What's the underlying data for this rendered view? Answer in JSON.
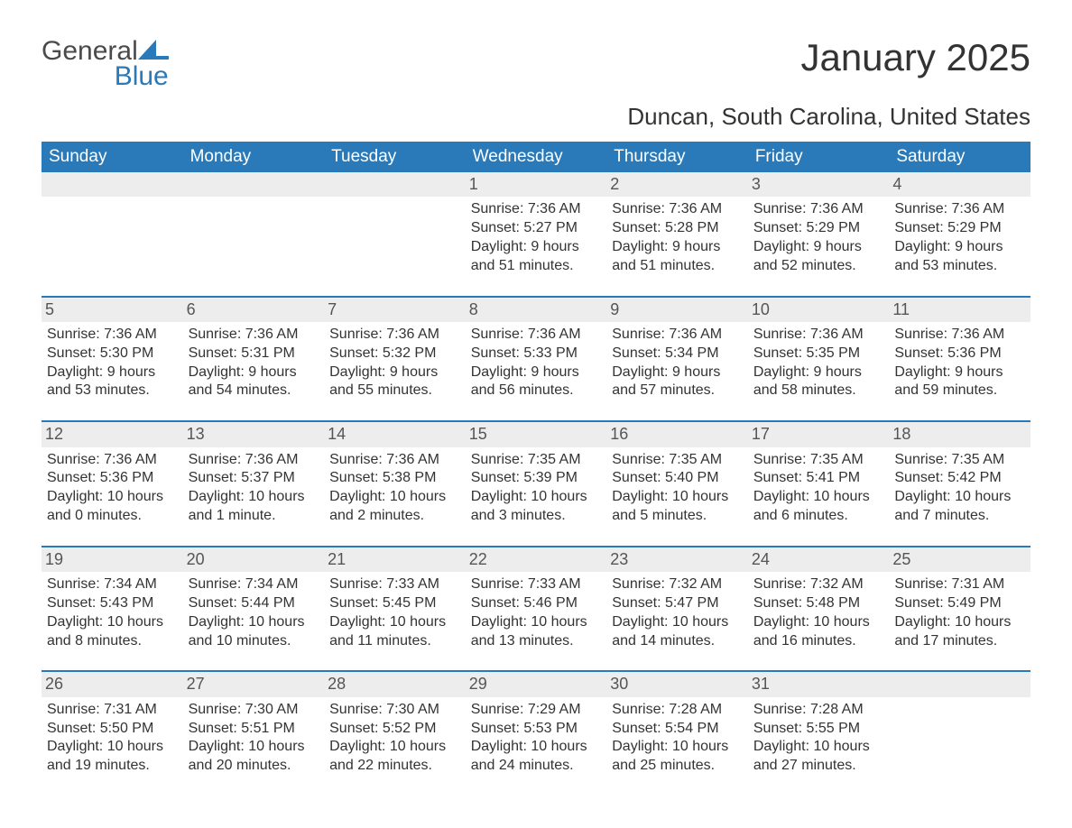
{
  "logo": {
    "word1": "General",
    "word2": "Blue",
    "word1_color": "#4a4a4a",
    "word2_color": "#2a7ab9",
    "sail_color": "#2a7ab9"
  },
  "title": "January 2025",
  "subtitle": "Duncan, South Carolina, United States",
  "colors": {
    "header_bg": "#2a7ab9",
    "header_text": "#ffffff",
    "daynum_bg": "#ededed",
    "daynum_text": "#555555",
    "body_text": "#333333",
    "row_separator": "#2a7ab9",
    "page_bg": "#ffffff"
  },
  "fonts": {
    "title_size": 42,
    "subtitle_size": 26,
    "header_size": 19,
    "daynum_size": 18,
    "body_size": 16
  },
  "weekdays": [
    "Sunday",
    "Monday",
    "Tuesday",
    "Wednesday",
    "Thursday",
    "Friday",
    "Saturday"
  ],
  "weeks": [
    [
      null,
      null,
      null,
      {
        "day": "1",
        "sunrise": "Sunrise: 7:36 AM",
        "sunset": "Sunset: 5:27 PM",
        "daylight": "Daylight: 9 hours and 51 minutes."
      },
      {
        "day": "2",
        "sunrise": "Sunrise: 7:36 AM",
        "sunset": "Sunset: 5:28 PM",
        "daylight": "Daylight: 9 hours and 51 minutes."
      },
      {
        "day": "3",
        "sunrise": "Sunrise: 7:36 AM",
        "sunset": "Sunset: 5:29 PM",
        "daylight": "Daylight: 9 hours and 52 minutes."
      },
      {
        "day": "4",
        "sunrise": "Sunrise: 7:36 AM",
        "sunset": "Sunset: 5:29 PM",
        "daylight": "Daylight: 9 hours and 53 minutes."
      }
    ],
    [
      {
        "day": "5",
        "sunrise": "Sunrise: 7:36 AM",
        "sunset": "Sunset: 5:30 PM",
        "daylight": "Daylight: 9 hours and 53 minutes."
      },
      {
        "day": "6",
        "sunrise": "Sunrise: 7:36 AM",
        "sunset": "Sunset: 5:31 PM",
        "daylight": "Daylight: 9 hours and 54 minutes."
      },
      {
        "day": "7",
        "sunrise": "Sunrise: 7:36 AM",
        "sunset": "Sunset: 5:32 PM",
        "daylight": "Daylight: 9 hours and 55 minutes."
      },
      {
        "day": "8",
        "sunrise": "Sunrise: 7:36 AM",
        "sunset": "Sunset: 5:33 PM",
        "daylight": "Daylight: 9 hours and 56 minutes."
      },
      {
        "day": "9",
        "sunrise": "Sunrise: 7:36 AM",
        "sunset": "Sunset: 5:34 PM",
        "daylight": "Daylight: 9 hours and 57 minutes."
      },
      {
        "day": "10",
        "sunrise": "Sunrise: 7:36 AM",
        "sunset": "Sunset: 5:35 PM",
        "daylight": "Daylight: 9 hours and 58 minutes."
      },
      {
        "day": "11",
        "sunrise": "Sunrise: 7:36 AM",
        "sunset": "Sunset: 5:36 PM",
        "daylight": "Daylight: 9 hours and 59 minutes."
      }
    ],
    [
      {
        "day": "12",
        "sunrise": "Sunrise: 7:36 AM",
        "sunset": "Sunset: 5:36 PM",
        "daylight": "Daylight: 10 hours and 0 minutes."
      },
      {
        "day": "13",
        "sunrise": "Sunrise: 7:36 AM",
        "sunset": "Sunset: 5:37 PM",
        "daylight": "Daylight: 10 hours and 1 minute."
      },
      {
        "day": "14",
        "sunrise": "Sunrise: 7:36 AM",
        "sunset": "Sunset: 5:38 PM",
        "daylight": "Daylight: 10 hours and 2 minutes."
      },
      {
        "day": "15",
        "sunrise": "Sunrise: 7:35 AM",
        "sunset": "Sunset: 5:39 PM",
        "daylight": "Daylight: 10 hours and 3 minutes."
      },
      {
        "day": "16",
        "sunrise": "Sunrise: 7:35 AM",
        "sunset": "Sunset: 5:40 PM",
        "daylight": "Daylight: 10 hours and 5 minutes."
      },
      {
        "day": "17",
        "sunrise": "Sunrise: 7:35 AM",
        "sunset": "Sunset: 5:41 PM",
        "daylight": "Daylight: 10 hours and 6 minutes."
      },
      {
        "day": "18",
        "sunrise": "Sunrise: 7:35 AM",
        "sunset": "Sunset: 5:42 PM",
        "daylight": "Daylight: 10 hours and 7 minutes."
      }
    ],
    [
      {
        "day": "19",
        "sunrise": "Sunrise: 7:34 AM",
        "sunset": "Sunset: 5:43 PM",
        "daylight": "Daylight: 10 hours and 8 minutes."
      },
      {
        "day": "20",
        "sunrise": "Sunrise: 7:34 AM",
        "sunset": "Sunset: 5:44 PM",
        "daylight": "Daylight: 10 hours and 10 minutes."
      },
      {
        "day": "21",
        "sunrise": "Sunrise: 7:33 AM",
        "sunset": "Sunset: 5:45 PM",
        "daylight": "Daylight: 10 hours and 11 minutes."
      },
      {
        "day": "22",
        "sunrise": "Sunrise: 7:33 AM",
        "sunset": "Sunset: 5:46 PM",
        "daylight": "Daylight: 10 hours and 13 minutes."
      },
      {
        "day": "23",
        "sunrise": "Sunrise: 7:32 AM",
        "sunset": "Sunset: 5:47 PM",
        "daylight": "Daylight: 10 hours and 14 minutes."
      },
      {
        "day": "24",
        "sunrise": "Sunrise: 7:32 AM",
        "sunset": "Sunset: 5:48 PM",
        "daylight": "Daylight: 10 hours and 16 minutes."
      },
      {
        "day": "25",
        "sunrise": "Sunrise: 7:31 AM",
        "sunset": "Sunset: 5:49 PM",
        "daylight": "Daylight: 10 hours and 17 minutes."
      }
    ],
    [
      {
        "day": "26",
        "sunrise": "Sunrise: 7:31 AM",
        "sunset": "Sunset: 5:50 PM",
        "daylight": "Daylight: 10 hours and 19 minutes."
      },
      {
        "day": "27",
        "sunrise": "Sunrise: 7:30 AM",
        "sunset": "Sunset: 5:51 PM",
        "daylight": "Daylight: 10 hours and 20 minutes."
      },
      {
        "day": "28",
        "sunrise": "Sunrise: 7:30 AM",
        "sunset": "Sunset: 5:52 PM",
        "daylight": "Daylight: 10 hours and 22 minutes."
      },
      {
        "day": "29",
        "sunrise": "Sunrise: 7:29 AM",
        "sunset": "Sunset: 5:53 PM",
        "daylight": "Daylight: 10 hours and 24 minutes."
      },
      {
        "day": "30",
        "sunrise": "Sunrise: 7:28 AM",
        "sunset": "Sunset: 5:54 PM",
        "daylight": "Daylight: 10 hours and 25 minutes."
      },
      {
        "day": "31",
        "sunrise": "Sunrise: 7:28 AM",
        "sunset": "Sunset: 5:55 PM",
        "daylight": "Daylight: 10 hours and 27 minutes."
      },
      null
    ]
  ]
}
